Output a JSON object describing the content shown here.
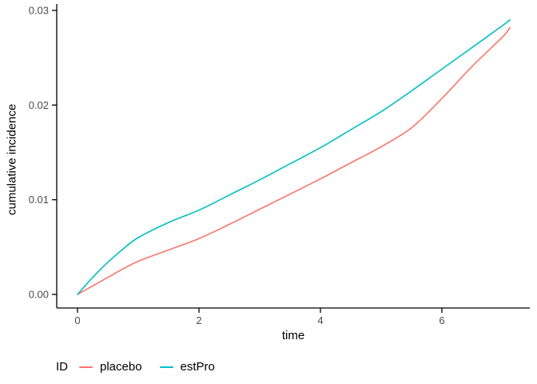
{
  "chart_data": {
    "type": "line",
    "title": "",
    "xlabel": "time",
    "ylabel": "cumulative incidence",
    "legend_title": "ID",
    "legend_position": "bottom",
    "grid": false,
    "xlim": [
      -0.35,
      7.45
    ],
    "ylim": [
      0,
      0.03
    ],
    "x_ticks": [
      0,
      2,
      4,
      6
    ],
    "x_tick_labels": [
      "0",
      "2",
      "4",
      "6"
    ],
    "y_ticks": [
      0,
      0.01,
      0.02,
      0.03
    ],
    "y_tick_labels": [
      "0.00",
      "0.01",
      "0.02",
      "0.03"
    ],
    "series": [
      {
        "name": "placebo",
        "color": "#F8766D",
        "x": [
          0,
          0.25,
          0.5,
          0.75,
          1,
          1.5,
          2,
          2.5,
          3,
          3.5,
          4,
          4.5,
          5,
          5.5,
          6,
          6.5,
          7,
          7.12
        ],
        "y": [
          0,
          0.0009,
          0.0018,
          0.0027,
          0.0035,
          0.0047,
          0.0059,
          0.0074,
          0.009,
          0.0106,
          0.0122,
          0.0139,
          0.0156,
          0.0176,
          0.0207,
          0.0241,
          0.0272,
          0.0282
        ]
      },
      {
        "name": "estPro",
        "color": "#00BFC4",
        "x": [
          0,
          0.25,
          0.5,
          0.75,
          1,
          1.5,
          2,
          2.5,
          3,
          3.5,
          4,
          4.5,
          5,
          5.5,
          6,
          6.5,
          7,
          7.12
        ],
        "y": [
          0,
          0.0018,
          0.0034,
          0.0048,
          0.006,
          0.0076,
          0.0089,
          0.0105,
          0.0121,
          0.0138,
          0.0155,
          0.0174,
          0.0193,
          0.0215,
          0.0238,
          0.0261,
          0.0284,
          0.029
        ]
      }
    ]
  },
  "colors": {
    "axis_line": "#000000",
    "tick_text": "#4D4D4D",
    "placebo": "#F8766D",
    "estPro": "#00BFC4"
  }
}
